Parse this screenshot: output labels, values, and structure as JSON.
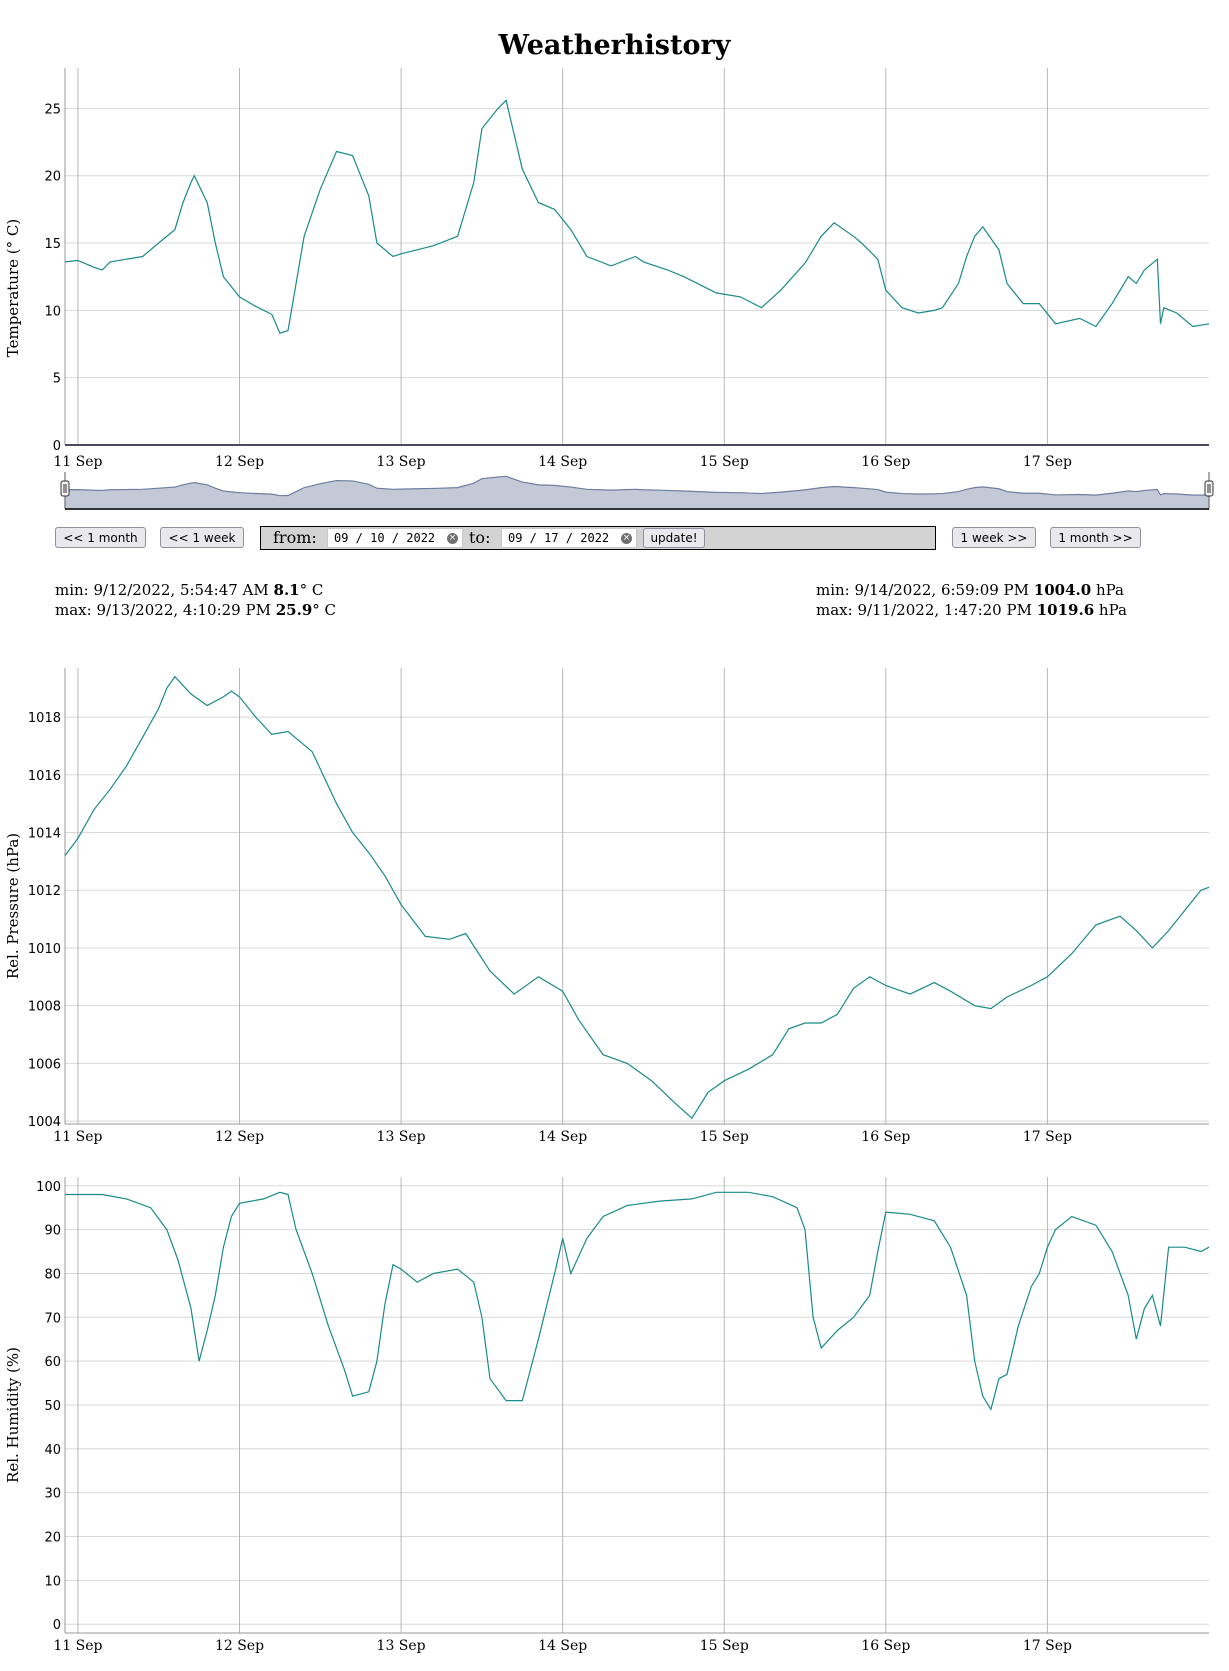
{
  "page": {
    "title": "Weatherhistory"
  },
  "controls": {
    "back_month": "<< 1 month",
    "back_week": "<< 1 week",
    "from_label": "from:",
    "from_value": "09 / 10 / 2022",
    "to_label": "to:",
    "to_value": "09 / 17 / 2022",
    "clear_symbol": "×",
    "update": "update!",
    "fwd_week": "1 week >>",
    "fwd_month": "1 month >>"
  },
  "stats": {
    "temperature": {
      "min_prefix": "min: 9/12/2022, 5:54:47 AM ",
      "min_value": "8.1",
      "min_unit": "° C",
      "max_prefix": "max: 9/13/2022, 4:10:29 PM ",
      "max_value": "25.9",
      "max_unit": "° C"
    },
    "pressure": {
      "min_prefix": "min: 9/14/2022, 6:59:09 PM ",
      "min_value": "1004.0",
      "min_unit": " hPa",
      "max_prefix": "max: 9/11/2022, 1:47:20 PM ",
      "max_value": "1019.6",
      "max_unit": " hPa"
    }
  },
  "colors": {
    "line": "#1a8a8a",
    "grid": "#d8d8d8",
    "vgrid": "#b8b8b8",
    "navigator_fill": "#b4bccc",
    "navigator_line": "#6f7ea0"
  },
  "chart_data": [
    {
      "type": "line",
      "title": "",
      "ylabel": "Temperature (° C)",
      "xlabel": "",
      "x_unit": "days since 11 Sep 2022 00:00",
      "xlim": [
        -0.08,
        7.0
      ],
      "ylim": [
        0,
        28
      ],
      "yticks": [
        0,
        5,
        10,
        15,
        20,
        25
      ],
      "xticks": [
        0,
        1,
        2,
        3,
        4,
        5,
        6
      ],
      "xtick_labels": [
        "11 Sep",
        "12 Sep",
        "13 Sep",
        "14 Sep",
        "15 Sep",
        "16 Sep",
        "17 Sep"
      ],
      "grid": true,
      "series": [
        {
          "name": "Temperature",
          "points": [
            [
              -0.08,
              13.6
            ],
            [
              0,
              13.7
            ],
            [
              0.1,
              13.2
            ],
            [
              0.15,
              13.0
            ],
            [
              0.2,
              13.6
            ],
            [
              0.3,
              13.8
            ],
            [
              0.4,
              14.0
            ],
            [
              0.5,
              15.0
            ],
            [
              0.6,
              16.0
            ],
            [
              0.65,
              18.0
            ],
            [
              0.7,
              19.5
            ],
            [
              0.72,
              20.0
            ],
            [
              0.8,
              18.0
            ],
            [
              0.85,
              15.0
            ],
            [
              0.9,
              12.5
            ],
            [
              1.0,
              11.0
            ],
            [
              1.1,
              10.3
            ],
            [
              1.2,
              9.7
            ],
            [
              1.25,
              8.3
            ],
            [
              1.3,
              8.5
            ],
            [
              1.35,
              12.0
            ],
            [
              1.4,
              15.5
            ],
            [
              1.5,
              19.0
            ],
            [
              1.6,
              21.8
            ],
            [
              1.7,
              21.5
            ],
            [
              1.8,
              18.5
            ],
            [
              1.85,
              15.0
            ],
            [
              1.95,
              14.0
            ],
            [
              2.0,
              14.2
            ],
            [
              2.1,
              14.5
            ],
            [
              2.2,
              14.8
            ],
            [
              2.35,
              15.5
            ],
            [
              2.45,
              19.5
            ],
            [
              2.5,
              23.5
            ],
            [
              2.6,
              25.0
            ],
            [
              2.65,
              25.6
            ],
            [
              2.75,
              20.5
            ],
            [
              2.85,
              18.0
            ],
            [
              2.95,
              17.5
            ],
            [
              3.05,
              16.0
            ],
            [
              3.15,
              14.0
            ],
            [
              3.3,
              13.3
            ],
            [
              3.45,
              14.0
            ],
            [
              3.5,
              13.6
            ],
            [
              3.65,
              13.0
            ],
            [
              3.75,
              12.5
            ],
            [
              3.95,
              11.3
            ],
            [
              4.1,
              11.0
            ],
            [
              4.23,
              10.2
            ],
            [
              4.35,
              11.5
            ],
            [
              4.5,
              13.5
            ],
            [
              4.6,
              15.5
            ],
            [
              4.68,
              16.5
            ],
            [
              4.8,
              15.5
            ],
            [
              4.85,
              15.0
            ],
            [
              4.95,
              13.8
            ],
            [
              5.0,
              11.5
            ],
            [
              5.1,
              10.2
            ],
            [
              5.2,
              9.8
            ],
            [
              5.3,
              10.0
            ],
            [
              5.35,
              10.2
            ],
            [
              5.45,
              12.0
            ],
            [
              5.5,
              14.0
            ],
            [
              5.55,
              15.5
            ],
            [
              5.6,
              16.2
            ],
            [
              5.7,
              14.5
            ],
            [
              5.75,
              12.0
            ],
            [
              5.85,
              10.5
            ],
            [
              5.95,
              10.5
            ],
            [
              6.05,
              9.0
            ],
            [
              6.2,
              9.4
            ],
            [
              6.3,
              8.8
            ],
            [
              6.4,
              10.5
            ],
            [
              6.5,
              12.5
            ],
            [
              6.55,
              12.0
            ],
            [
              6.6,
              13.0
            ],
            [
              6.68,
              13.8
            ],
            [
              6.7,
              9.0
            ],
            [
              6.72,
              10.2
            ],
            [
              6.8,
              9.8
            ],
            [
              6.9,
              8.8
            ],
            [
              7.0,
              9.0
            ]
          ]
        }
      ]
    },
    {
      "type": "line",
      "title": "",
      "ylabel": "Rel. Pressure (hPa)",
      "xlabel": "",
      "x_unit": "days since 11 Sep 2022 00:00",
      "xlim": [
        -0.08,
        7.0
      ],
      "ylim": [
        1003.9,
        1019.7
      ],
      "yticks": [
        1004,
        1006,
        1008,
        1010,
        1012,
        1014,
        1016,
        1018
      ],
      "xticks": [
        0,
        1,
        2,
        3,
        4,
        5,
        6
      ],
      "xtick_labels": [
        "11 Sep",
        "12 Sep",
        "13 Sep",
        "14 Sep",
        "15 Sep",
        "16 Sep",
        "17 Sep"
      ],
      "grid": true,
      "series": [
        {
          "name": "Rel. Pressure",
          "points": [
            [
              -0.08,
              1013.2
            ],
            [
              0,
              1013.8
            ],
            [
              0.1,
              1014.8
            ],
            [
              0.2,
              1015.5
            ],
            [
              0.3,
              1016.3
            ],
            [
              0.4,
              1017.3
            ],
            [
              0.5,
              1018.3
            ],
            [
              0.55,
              1019.0
            ],
            [
              0.6,
              1019.4
            ],
            [
              0.7,
              1018.8
            ],
            [
              0.8,
              1018.4
            ],
            [
              0.9,
              1018.7
            ],
            [
              0.95,
              1018.9
            ],
            [
              1.0,
              1018.7
            ],
            [
              1.1,
              1018.0
            ],
            [
              1.2,
              1017.4
            ],
            [
              1.3,
              1017.5
            ],
            [
              1.45,
              1016.8
            ],
            [
              1.6,
              1015.0
            ],
            [
              1.7,
              1014.0
            ],
            [
              1.8,
              1013.3
            ],
            [
              1.9,
              1012.5
            ],
            [
              2.0,
              1011.5
            ],
            [
              2.15,
              1010.4
            ],
            [
              2.3,
              1010.3
            ],
            [
              2.4,
              1010.5
            ],
            [
              2.55,
              1009.2
            ],
            [
              2.7,
              1008.4
            ],
            [
              2.85,
              1009.0
            ],
            [
              3.0,
              1008.5
            ],
            [
              3.1,
              1007.5
            ],
            [
              3.25,
              1006.3
            ],
            [
              3.4,
              1006.0
            ],
            [
              3.55,
              1005.4
            ],
            [
              3.7,
              1004.6
            ],
            [
              3.8,
              1004.1
            ],
            [
              3.9,
              1005.0
            ],
            [
              4.0,
              1005.4
            ],
            [
              4.15,
              1005.8
            ],
            [
              4.3,
              1006.3
            ],
            [
              4.4,
              1007.2
            ],
            [
              4.5,
              1007.4
            ],
            [
              4.6,
              1007.4
            ],
            [
              4.7,
              1007.7
            ],
            [
              4.8,
              1008.6
            ],
            [
              4.9,
              1009.0
            ],
            [
              5.0,
              1008.7
            ],
            [
              5.15,
              1008.4
            ],
            [
              5.3,
              1008.8
            ],
            [
              5.4,
              1008.5
            ],
            [
              5.55,
              1008.0
            ],
            [
              5.65,
              1007.9
            ],
            [
              5.75,
              1008.3
            ],
            [
              5.9,
              1008.7
            ],
            [
              6.0,
              1009.0
            ],
            [
              6.15,
              1009.8
            ],
            [
              6.3,
              1010.8
            ],
            [
              6.45,
              1011.1
            ],
            [
              6.55,
              1010.6
            ],
            [
              6.65,
              1010.0
            ],
            [
              6.75,
              1010.6
            ],
            [
              6.85,
              1011.3
            ],
            [
              6.95,
              1012.0
            ],
            [
              7.0,
              1012.1
            ]
          ]
        }
      ]
    },
    {
      "type": "line",
      "title": "",
      "ylabel": "Rel. Humidity (%)",
      "xlabel": "",
      "x_unit": "days since 11 Sep 2022 00:00",
      "xlim": [
        -0.08,
        7.0
      ],
      "ylim": [
        -2,
        102
      ],
      "yticks": [
        0,
        10,
        20,
        30,
        40,
        50,
        60,
        70,
        80,
        90,
        100
      ],
      "xticks": [
        0,
        1,
        2,
        3,
        4,
        5,
        6
      ],
      "xtick_labels": [
        "11 Sep",
        "12 Sep",
        "13 Sep",
        "14 Sep",
        "15 Sep",
        "16 Sep",
        "17 Sep"
      ],
      "grid": true,
      "series": [
        {
          "name": "Rel. Humidity",
          "points": [
            [
              -0.08,
              98
            ],
            [
              0.15,
              98
            ],
            [
              0.3,
              97
            ],
            [
              0.45,
              95
            ],
            [
              0.55,
              90
            ],
            [
              0.62,
              83
            ],
            [
              0.7,
              72
            ],
            [
              0.75,
              60
            ],
            [
              0.8,
              67
            ],
            [
              0.85,
              75
            ],
            [
              0.9,
              86
            ],
            [
              0.95,
              93
            ],
            [
              1.0,
              96
            ],
            [
              1.15,
              97
            ],
            [
              1.25,
              98.5
            ],
            [
              1.3,
              98
            ],
            [
              1.35,
              90
            ],
            [
              1.45,
              80
            ],
            [
              1.55,
              68
            ],
            [
              1.65,
              58
            ],
            [
              1.7,
              52
            ],
            [
              1.8,
              53
            ],
            [
              1.85,
              60
            ],
            [
              1.9,
              73
            ],
            [
              1.95,
              82
            ],
            [
              2.0,
              81
            ],
            [
              2.1,
              78
            ],
            [
              2.2,
              80
            ],
            [
              2.35,
              81
            ],
            [
              2.45,
              78
            ],
            [
              2.5,
              70
            ],
            [
              2.55,
              56
            ],
            [
              2.65,
              51
            ],
            [
              2.75,
              51
            ],
            [
              2.85,
              65
            ],
            [
              2.95,
              80
            ],
            [
              3.0,
              88
            ],
            [
              3.05,
              80
            ],
            [
              3.15,
              88
            ],
            [
              3.25,
              93
            ],
            [
              3.4,
              95.5
            ],
            [
              3.6,
              96.5
            ],
            [
              3.8,
              97
            ],
            [
              3.95,
              98.5
            ],
            [
              4.15,
              98.5
            ],
            [
              4.3,
              97.5
            ],
            [
              4.45,
              95
            ],
            [
              4.5,
              90
            ],
            [
              4.55,
              70
            ],
            [
              4.6,
              63
            ],
            [
              4.7,
              67
            ],
            [
              4.8,
              70
            ],
            [
              4.9,
              75
            ],
            [
              4.95,
              85
            ],
            [
              5.0,
              94
            ],
            [
              5.15,
              93.5
            ],
            [
              5.3,
              92
            ],
            [
              5.4,
              86
            ],
            [
              5.5,
              75
            ],
            [
              5.55,
              60
            ],
            [
              5.6,
              52
            ],
            [
              5.65,
              49
            ],
            [
              5.7,
              56
            ],
            [
              5.75,
              57
            ],
            [
              5.82,
              68
            ],
            [
              5.9,
              77
            ],
            [
              5.95,
              80
            ],
            [
              6.0,
              86
            ],
            [
              6.05,
              90
            ],
            [
              6.15,
              93
            ],
            [
              6.3,
              91
            ],
            [
              6.4,
              85
            ],
            [
              6.5,
              75
            ],
            [
              6.55,
              65
            ],
            [
              6.6,
              72
            ],
            [
              6.65,
              75
            ],
            [
              6.7,
              68
            ],
            [
              6.75,
              86
            ],
            [
              6.85,
              86
            ],
            [
              6.95,
              85
            ],
            [
              7.0,
              86
            ]
          ]
        }
      ]
    }
  ]
}
